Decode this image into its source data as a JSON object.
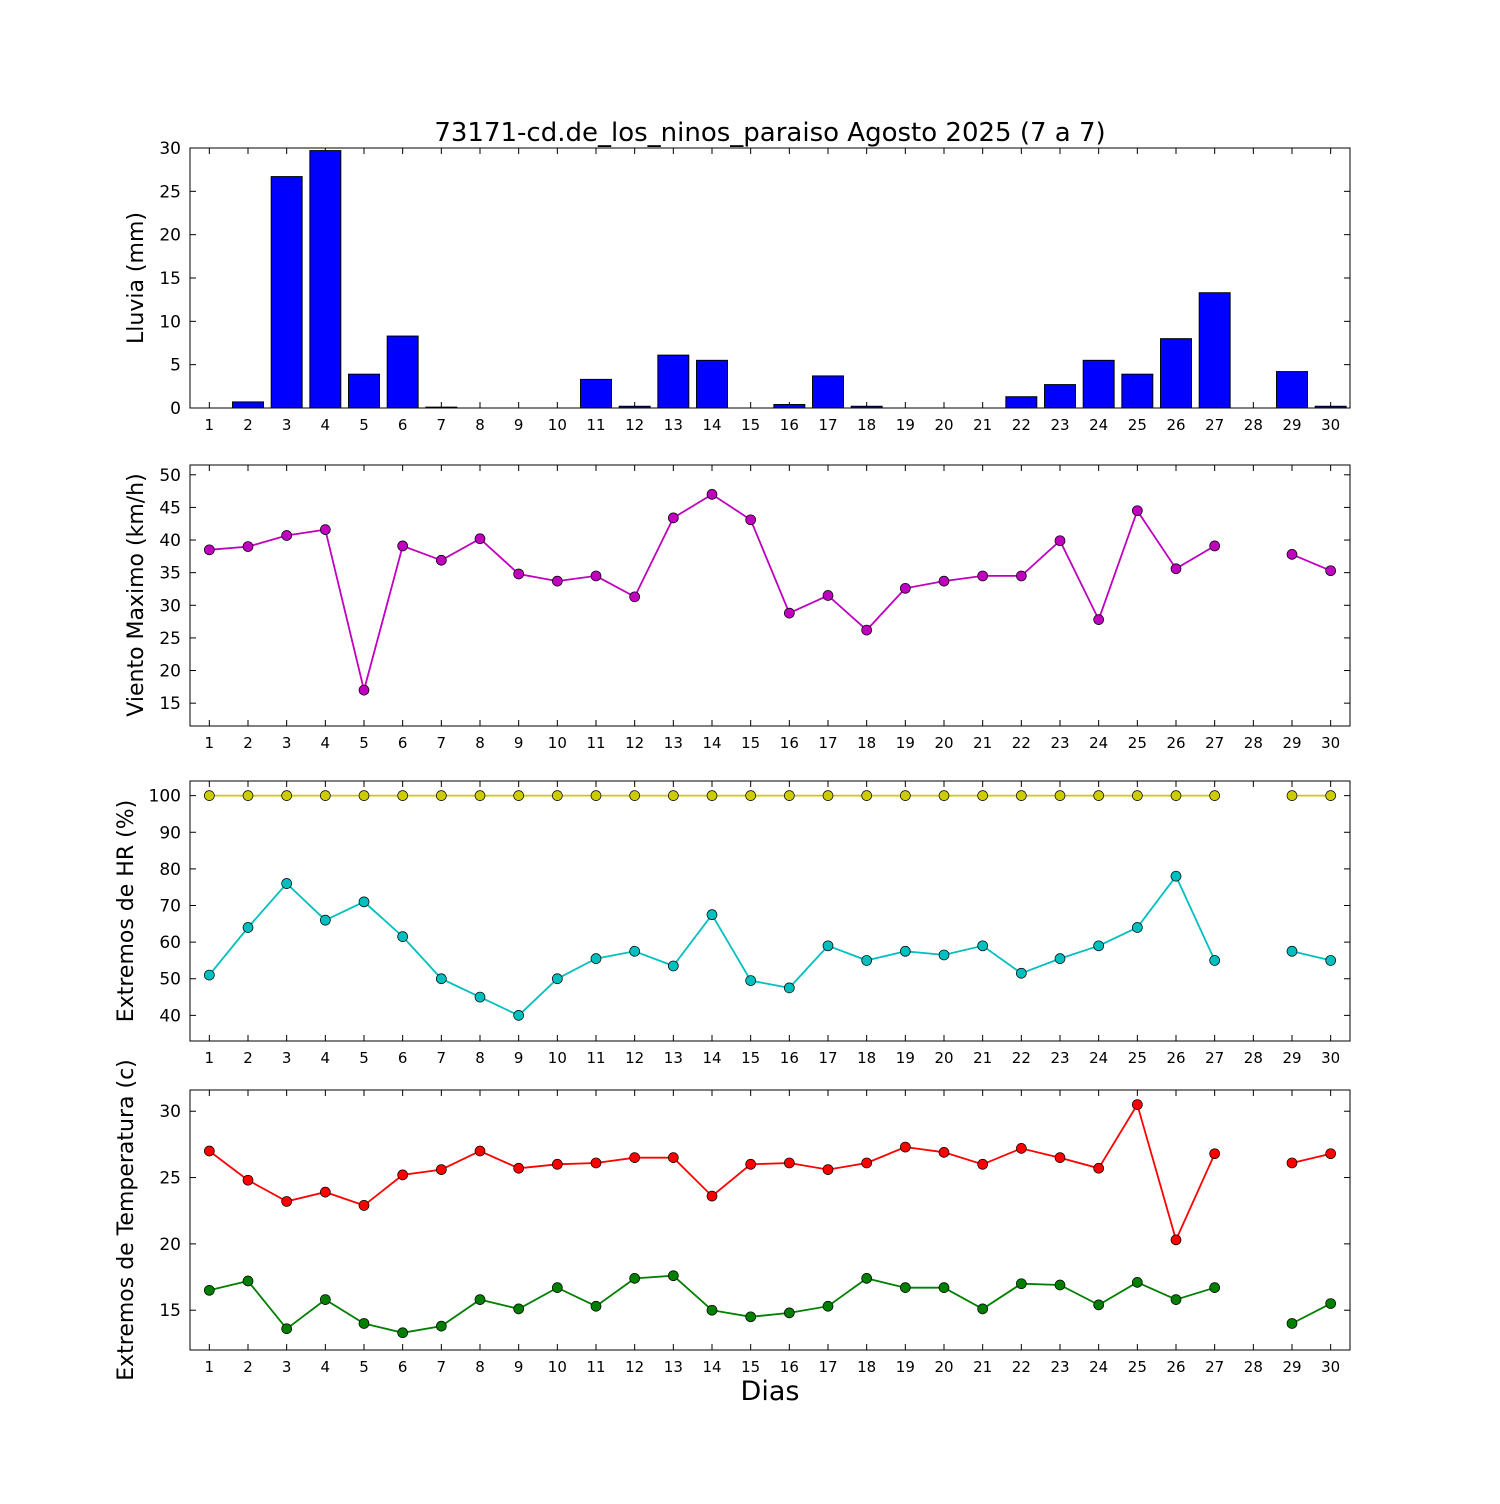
{
  "title": "73171-cd.de_los_ninos_paraiso Agosto 2025  (7 a 7)",
  "xlabel": "Dias",
  "days": [
    1,
    2,
    3,
    4,
    5,
    6,
    7,
    8,
    9,
    10,
    11,
    12,
    13,
    14,
    15,
    16,
    17,
    18,
    19,
    20,
    21,
    22,
    23,
    24,
    25,
    26,
    27,
    28,
    29,
    30
  ],
  "chart_data": [
    {
      "type": "bar",
      "ylabel": "Lluvia (mm)",
      "color": "#0000ff",
      "edge_color": "#000000",
      "ylim": [
        0,
        30
      ],
      "yticks": [
        0,
        5,
        10,
        15,
        20,
        25,
        30
      ],
      "values": [
        0,
        0.7,
        26.7,
        29.7,
        3.9,
        8.3,
        0.1,
        0,
        0,
        0,
        3.3,
        0.2,
        6.1,
        5.5,
        0,
        0.4,
        3.7,
        0.2,
        0,
        0,
        0,
        1.3,
        2.7,
        5.5,
        3.9,
        8.0,
        13.3,
        0,
        4.2,
        0.2
      ]
    },
    {
      "type": "line",
      "ylabel": "Viento Maximo (km/h)",
      "ylim": [
        11.5,
        51.5
      ],
      "yticks": [
        15,
        20,
        25,
        30,
        35,
        40,
        45,
        50
      ],
      "series": [
        {
          "name": "viento-maximo",
          "color": "#bf00bf",
          "values": [
            38.5,
            39.0,
            40.7,
            41.6,
            17.0,
            39.1,
            36.9,
            40.2,
            34.8,
            33.7,
            34.5,
            31.3,
            43.4,
            47.0,
            43.1,
            28.8,
            31.5,
            26.2,
            32.6,
            33.7,
            34.5,
            34.5,
            39.9,
            27.8,
            44.5,
            35.6,
            39.1,
            null,
            37.8,
            35.3
          ]
        }
      ]
    },
    {
      "type": "line",
      "ylabel": "Extremos de HR (%)",
      "ylim": [
        33,
        104
      ],
      "yticks": [
        40,
        50,
        60,
        70,
        80,
        90,
        100
      ],
      "series": [
        {
          "name": "hr-maxima",
          "color": "#cccc00",
          "values": [
            100,
            100,
            100,
            100,
            100,
            100,
            100,
            100,
            100,
            100,
            100,
            100,
            100,
            100,
            100,
            100,
            100,
            100,
            100,
            100,
            100,
            100,
            100,
            100,
            100,
            100,
            100,
            null,
            100,
            100
          ]
        },
        {
          "name": "hr-minima",
          "color": "#00bfbf",
          "values": [
            51,
            64,
            76,
            66,
            71,
            61.5,
            50,
            45,
            40,
            50,
            55.5,
            57.5,
            53.5,
            67.5,
            49.5,
            47.5,
            59,
            55,
            57.5,
            56.5,
            59,
            51.5,
            55.5,
            59,
            64,
            78,
            55,
            null,
            57.5,
            55
          ]
        }
      ]
    },
    {
      "type": "line",
      "ylabel": "Extremos de Temperatura (c)",
      "ylim": [
        12,
        31.6
      ],
      "yticks": [
        15,
        20,
        25,
        30
      ],
      "series": [
        {
          "name": "temperatura-maxima",
          "color": "#ff0000",
          "values": [
            27.0,
            24.8,
            23.2,
            23.9,
            22.9,
            25.2,
            25.6,
            27.0,
            25.7,
            26.0,
            26.1,
            26.5,
            26.5,
            23.6,
            26.0,
            26.1,
            25.6,
            26.1,
            27.3,
            26.9,
            26.0,
            27.2,
            26.5,
            25.7,
            30.5,
            20.3,
            26.8,
            null,
            26.1,
            26.8
          ]
        },
        {
          "name": "temperatura-minima",
          "color": "#007f00",
          "values": [
            16.5,
            17.2,
            13.6,
            15.8,
            14.0,
            13.3,
            13.8,
            15.8,
            15.1,
            16.7,
            15.3,
            17.4,
            17.6,
            15.0,
            14.5,
            14.8,
            15.3,
            17.4,
            16.7,
            16.7,
            15.1,
            17.0,
            16.9,
            15.4,
            17.1,
            15.8,
            16.7,
            null,
            14.0,
            15.5
          ]
        }
      ]
    }
  ]
}
